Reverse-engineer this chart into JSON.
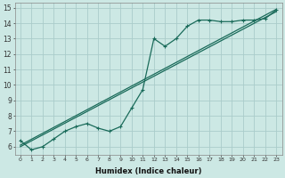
{
  "xlabel": "Humidex (Indice chaleur)",
  "bg_color": "#cce8e4",
  "grid_color": "#aaccca",
  "line_color": "#1a6b5a",
  "xlim": [
    -0.5,
    23.5
  ],
  "ylim": [
    5.5,
    15.3
  ],
  "xticks": [
    0,
    1,
    2,
    3,
    4,
    5,
    6,
    7,
    8,
    9,
    10,
    11,
    12,
    13,
    14,
    15,
    16,
    17,
    18,
    19,
    20,
    21,
    22,
    23
  ],
  "yticks": [
    6,
    7,
    8,
    9,
    10,
    11,
    12,
    13,
    14,
    15
  ],
  "line1_x": [
    0,
    1,
    2,
    3,
    4,
    5,
    6,
    7,
    8,
    9,
    10,
    11,
    12,
    13,
    14,
    15,
    16,
    17,
    18,
    19,
    20,
    21,
    22,
    23
  ],
  "line1_y": [
    6.4,
    5.8,
    6.0,
    6.5,
    7.0,
    7.3,
    7.5,
    7.2,
    7.0,
    7.3,
    8.5,
    9.7,
    13.0,
    12.5,
    13.0,
    13.8,
    14.2,
    14.2,
    14.1,
    14.1,
    14.2,
    14.2,
    14.3,
    14.85
  ],
  "line2_x": [
    0,
    23
  ],
  "line2_y": [
    6.1,
    14.9
  ],
  "line3_x": [
    0,
    23
  ],
  "line3_y": [
    6.0,
    14.75
  ]
}
